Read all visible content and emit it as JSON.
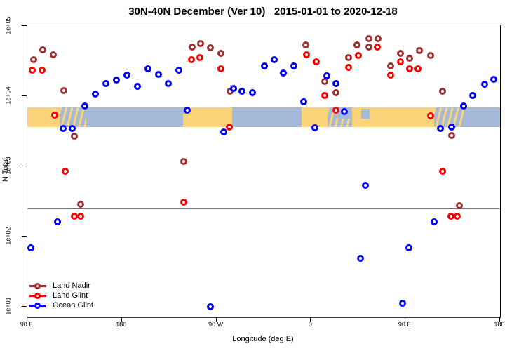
{
  "chart_data": {
    "type": "scatter",
    "title": "30N-40N December (Ver 10)   2015-01-01 to 2020-12-18",
    "xlabel": "Longitude (deg E)",
    "ylabel": "N Total",
    "x_axis": {
      "min": 90,
      "max": 540,
      "note": "longitude axis wraps: 90E eastward around globe to 180 again",
      "ticks": [
        {
          "label": "90 E",
          "lon": 90
        },
        {
          "label": "180",
          "lon": 180
        },
        {
          "label": "90 W",
          "lon": 270
        },
        {
          "label": "0",
          "lon": 360
        },
        {
          "label": "90 E",
          "lon": 450
        },
        {
          "label": "180",
          "lon": 540
        }
      ]
    },
    "y_axis": {
      "scale": "log",
      "ticks": [
        {
          "label": "1e+01",
          "value": 10
        },
        {
          "label": "1e+02",
          "value": 100
        },
        {
          "label": "1e+03",
          "value": 1000
        },
        {
          "label": "1e+04",
          "value": 10000
        },
        {
          "label": "1e+05",
          "value": 100000
        }
      ]
    },
    "reference_line": {
      "value": 250,
      "color": "#737373"
    },
    "map_band": {
      "value_top": 6800,
      "value_bottom": 3550,
      "land_color": "#FBD37B",
      "ocean_color": "#A5BAD8",
      "segments": [
        {
          "from": 90,
          "to": 120.5,
          "type": "land"
        },
        {
          "from": 120.5,
          "to": 146,
          "type": "coast"
        },
        {
          "from": 146,
          "to": 238.5,
          "type": "ocean"
        },
        {
          "from": 238.5,
          "to": 285,
          "type": "land"
        },
        {
          "from": 285,
          "to": 351,
          "type": "ocean"
        },
        {
          "from": 351,
          "to": 376,
          "type": "land"
        },
        {
          "from": 376,
          "to": 399,
          "type": "coast"
        },
        {
          "from": 399,
          "to": 477,
          "type": "land"
        },
        {
          "from": 477,
          "to": 505,
          "type": "coast"
        },
        {
          "from": 505,
          "to": 540,
          "type": "ocean"
        }
      ],
      "patches": [
        {
          "from": 408,
          "to": 416,
          "type": "ocean",
          "top": 0.05,
          "height": 0.5
        },
        {
          "from": 385,
          "to": 399,
          "type": "ocean",
          "top": 0.0,
          "height": 0.55
        },
        {
          "from": 238.5,
          "to": 242,
          "type": "ocean",
          "top": 0.0,
          "height": 0.3
        }
      ]
    },
    "series": [
      {
        "name": "Land Nadir",
        "color": "#9E3131",
        "points": [
          [
            96,
            32400
          ],
          [
            105,
            45700
          ],
          [
            115,
            38900
          ],
          [
            125,
            12000
          ],
          [
            135,
            2690
          ],
          [
            141,
            282
          ],
          [
            239,
            1150
          ],
          [
            247,
            49000
          ],
          [
            255,
            56200
          ],
          [
            264,
            47900
          ],
          [
            274,
            40700
          ],
          [
            283,
            11700
          ],
          [
            355,
            53700
          ],
          [
            373,
            16200
          ],
          [
            384,
            11200
          ],
          [
            396,
            34700
          ],
          [
            404,
            53700
          ],
          [
            415,
            64600
          ],
          [
            415,
            49000
          ],
          [
            424,
            64600
          ],
          [
            436,
            26900
          ],
          [
            445,
            40700
          ],
          [
            454,
            33900
          ],
          [
            463,
            43700
          ],
          [
            474,
            38000
          ],
          [
            485,
            11700
          ],
          [
            494,
            2750
          ],
          [
            501,
            275
          ]
        ]
      },
      {
        "name": "Land Glint",
        "color": "#FF0000",
        "points": [
          [
            95,
            23400
          ],
          [
            104,
            23400
          ],
          [
            116,
            5250
          ],
          [
            126,
            851
          ],
          [
            135,
            191
          ],
          [
            141,
            191
          ],
          [
            239,
            302
          ],
          [
            246,
            32400
          ],
          [
            254,
            34700
          ],
          [
            274,
            24500
          ],
          [
            282,
            3550
          ],
          [
            356,
            38900
          ],
          [
            365,
            30200
          ],
          [
            373,
            10200
          ],
          [
            384,
            6170
          ],
          [
            396,
            25700
          ],
          [
            405,
            38000
          ],
          [
            423,
            50100
          ],
          [
            436,
            19500
          ],
          [
            445,
            30900
          ],
          [
            454,
            24000
          ],
          [
            462,
            24000
          ],
          [
            474,
            5130
          ],
          [
            485,
            851
          ],
          [
            493,
            191
          ],
          [
            499,
            191
          ]
        ]
      },
      {
        "name": "Ocean Glint",
        "color": "#0000FF",
        "points": [
          [
            93,
            68
          ],
          [
            119,
            162
          ],
          [
            124,
            3390
          ],
          [
            133,
            3390
          ],
          [
            145,
            7240
          ],
          [
            155,
            10500
          ],
          [
            165,
            14800
          ],
          [
            175,
            16600
          ],
          [
            185,
            19500
          ],
          [
            195,
            13500
          ],
          [
            205,
            24500
          ],
          [
            215,
            20000
          ],
          [
            224,
            15100
          ],
          [
            234,
            23400
          ],
          [
            242,
            6170
          ],
          [
            264,
            10
          ],
          [
            277,
            3090
          ],
          [
            286,
            12600
          ],
          [
            294,
            11500
          ],
          [
            304,
            11200
          ],
          [
            316,
            26900
          ],
          [
            325,
            33100
          ],
          [
            334,
            20900
          ],
          [
            344,
            26900
          ],
          [
            353,
            8130
          ],
          [
            364,
            3470
          ],
          [
            375,
            19100
          ],
          [
            384,
            15100
          ],
          [
            392,
            5890
          ],
          [
            407,
            48
          ],
          [
            412,
            525
          ],
          [
            447,
            11
          ],
          [
            453,
            68
          ],
          [
            477,
            162
          ],
          [
            483,
            3390
          ],
          [
            494,
            3550
          ],
          [
            505,
            7240
          ],
          [
            514,
            10200
          ],
          [
            525,
            14500
          ],
          [
            534,
            17000
          ]
        ]
      }
    ],
    "legend_position": "bottom-left"
  }
}
